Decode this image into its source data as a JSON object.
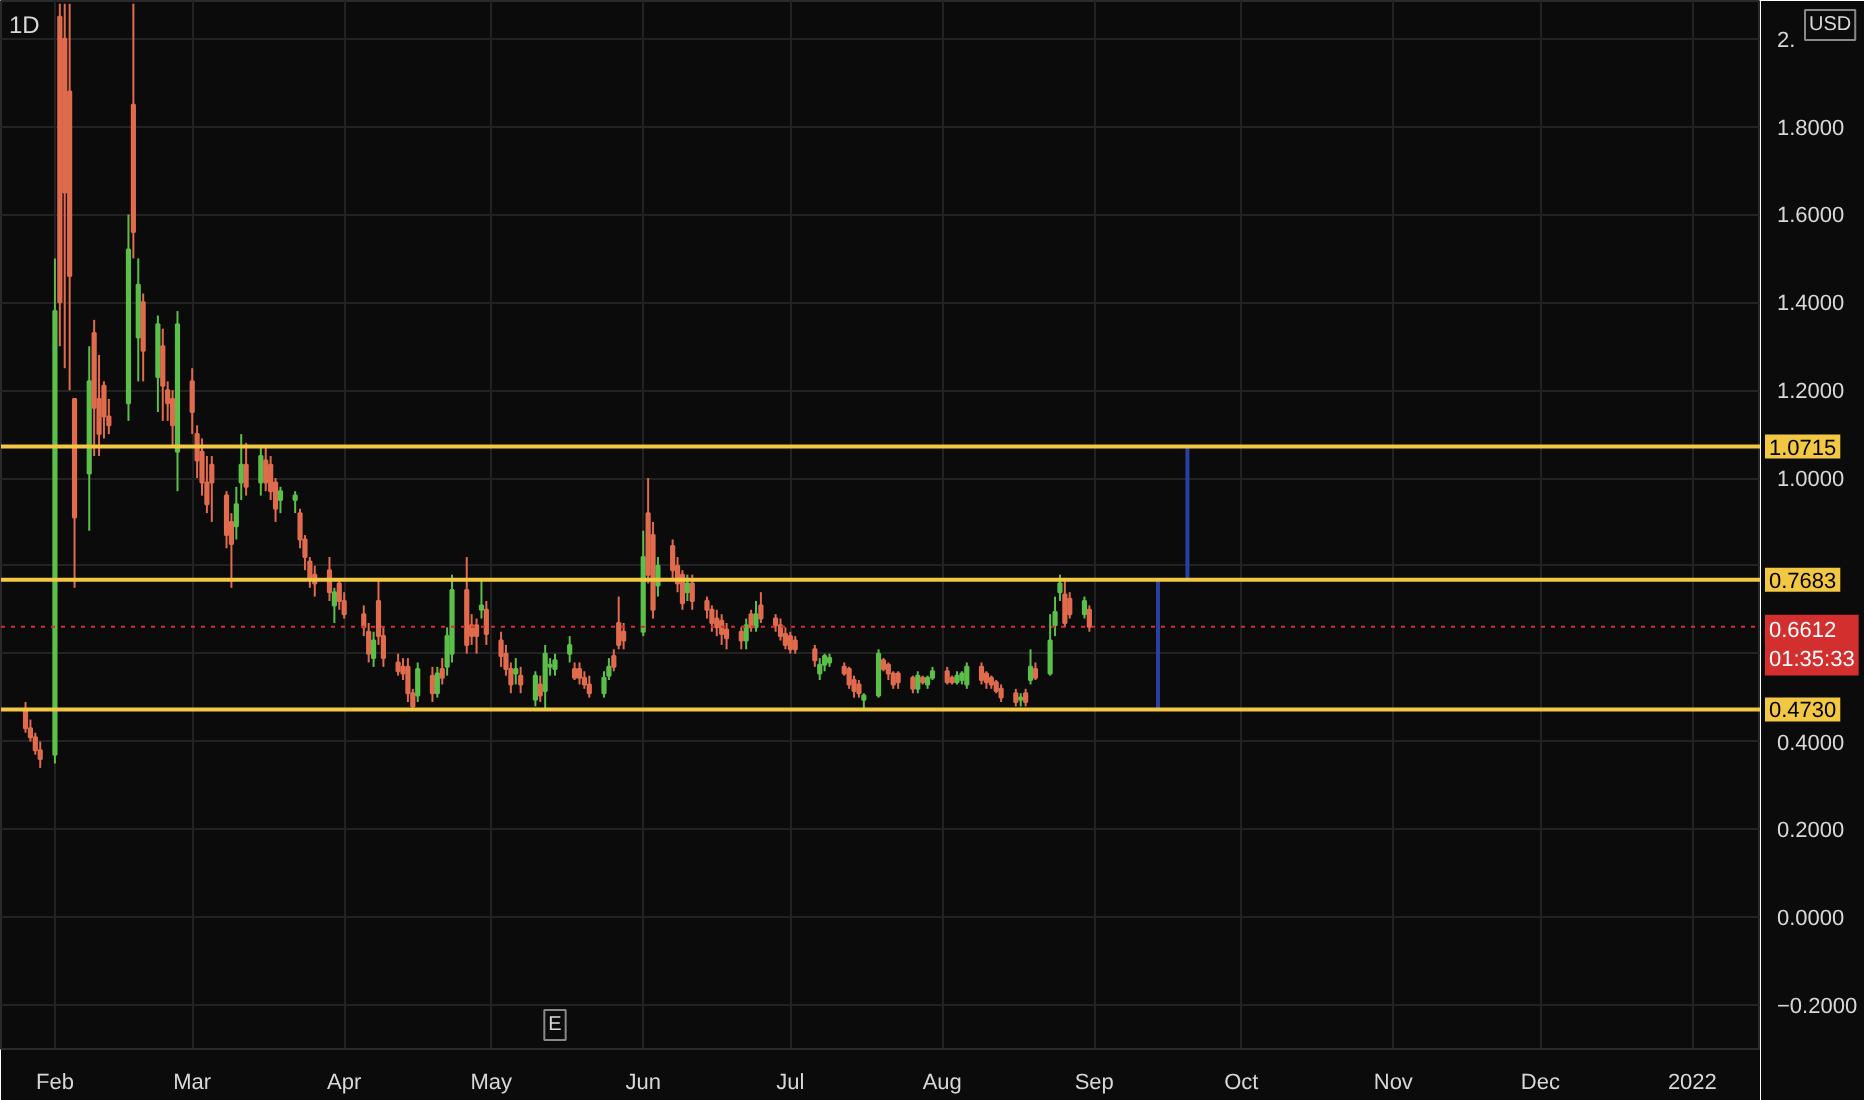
{
  "chart_data": {
    "type": "candlestick",
    "title": "1D",
    "x": [
      "2021-01-26",
      "2021-01-27",
      "2021-01-28",
      "2021-01-29",
      "2021-02-01",
      "2021-02-02",
      "2021-02-03",
      "2021-02-04",
      "2021-02-05",
      "2021-02-08",
      "2021-02-09",
      "2021-02-10",
      "2021-02-11",
      "2021-02-12",
      "2021-02-16",
      "2021-02-17",
      "2021-02-18",
      "2021-02-19",
      "2021-02-22",
      "2021-02-23",
      "2021-02-24",
      "2021-02-25",
      "2021-02-26",
      "2021-03-01",
      "2021-03-02",
      "2021-03-03",
      "2021-03-04",
      "2021-03-05",
      "2021-03-08",
      "2021-03-09",
      "2021-03-10",
      "2021-03-11",
      "2021-03-12",
      "2021-03-15",
      "2021-03-16",
      "2021-03-17",
      "2021-03-18",
      "2021-03-19",
      "2021-03-22",
      "2021-03-23",
      "2021-03-24",
      "2021-03-25",
      "2021-03-26",
      "2021-03-29",
      "2021-03-30",
      "2021-03-31",
      "2021-04-01",
      "2021-04-05",
      "2021-04-06",
      "2021-04-07",
      "2021-04-08",
      "2021-04-09",
      "2021-04-12",
      "2021-04-13",
      "2021-04-14",
      "2021-04-15",
      "2021-04-16",
      "2021-04-19",
      "2021-04-20",
      "2021-04-21",
      "2021-04-22",
      "2021-04-23",
      "2021-04-26",
      "2021-04-27",
      "2021-04-28",
      "2021-04-29",
      "2021-04-30",
      "2021-05-03",
      "2021-05-04",
      "2021-05-05",
      "2021-05-06",
      "2021-05-07",
      "2021-05-10",
      "2021-05-11",
      "2021-05-12",
      "2021-05-13",
      "2021-05-14",
      "2021-05-17",
      "2021-05-18",
      "2021-05-19",
      "2021-05-20",
      "2021-05-21",
      "2021-05-24",
      "2021-05-25",
      "2021-05-26",
      "2021-05-27",
      "2021-05-28",
      "2021-06-01",
      "2021-06-02",
      "2021-06-03",
      "2021-06-04",
      "2021-06-07",
      "2021-06-08",
      "2021-06-09",
      "2021-06-10",
      "2021-06-11",
      "2021-06-14",
      "2021-06-15",
      "2021-06-16",
      "2021-06-17",
      "2021-06-18",
      "2021-06-21",
      "2021-06-22",
      "2021-06-23",
      "2021-06-24",
      "2021-06-25",
      "2021-06-28",
      "2021-06-29",
      "2021-06-30",
      "2021-07-01",
      "2021-07-02",
      "2021-07-06",
      "2021-07-07",
      "2021-07-08",
      "2021-07-09",
      "2021-07-12",
      "2021-07-13",
      "2021-07-14",
      "2021-07-15",
      "2021-07-16",
      "2021-07-19",
      "2021-07-20",
      "2021-07-21",
      "2021-07-22",
      "2021-07-23",
      "2021-07-26",
      "2021-07-27",
      "2021-07-28",
      "2021-07-29",
      "2021-07-30",
      "2021-08-02",
      "2021-08-03",
      "2021-08-04",
      "2021-08-05",
      "2021-08-06",
      "2021-08-09",
      "2021-08-10",
      "2021-08-11",
      "2021-08-12",
      "2021-08-13",
      "2021-08-16",
      "2021-08-17",
      "2021-08-18",
      "2021-08-19",
      "2021-08-20",
      "2021-08-23",
      "2021-08-24",
      "2021-08-25",
      "2021-08-26",
      "2021-08-27",
      "2021-08-30",
      "2021-08-31"
    ],
    "ohlc": [
      [
        0.47,
        0.49,
        0.42,
        0.43
      ],
      [
        0.43,
        0.45,
        0.4,
        0.41
      ],
      [
        0.41,
        0.42,
        0.37,
        0.38
      ],
      [
        0.38,
        0.4,
        0.34,
        0.36
      ],
      [
        0.37,
        1.5,
        0.35,
        1.38
      ],
      [
        2.05,
        2.08,
        1.3,
        1.4
      ],
      [
        2.0,
        2.08,
        1.25,
        1.65
      ],
      [
        1.88,
        2.08,
        1.2,
        1.46
      ],
      [
        1.18,
        1.18,
        0.75,
        0.91
      ],
      [
        1.01,
        1.3,
        0.88,
        1.22
      ],
      [
        1.33,
        1.36,
        1.05,
        1.16
      ],
      [
        1.18,
        1.28,
        1.05,
        1.1
      ],
      [
        1.21,
        1.22,
        1.09,
        1.14
      ],
      [
        1.14,
        1.18,
        1.1,
        1.12
      ],
      [
        1.17,
        1.6,
        1.13,
        1.52
      ],
      [
        1.85,
        2.08,
        1.5,
        1.56
      ],
      [
        1.32,
        1.5,
        1.22,
        1.44
      ],
      [
        1.4,
        1.42,
        1.22,
        1.29
      ],
      [
        1.23,
        1.37,
        1.15,
        1.35
      ],
      [
        1.3,
        1.34,
        1.13,
        1.21
      ],
      [
        1.2,
        1.22,
        1.13,
        1.17
      ],
      [
        1.18,
        1.2,
        1.07,
        1.12
      ],
      [
        1.06,
        1.38,
        0.97,
        1.35
      ],
      [
        1.22,
        1.25,
        1.1,
        1.15
      ],
      [
        1.1,
        1.12,
        1.0,
        1.04
      ],
      [
        1.06,
        1.09,
        0.96,
        0.99
      ],
      [
        0.99,
        1.05,
        0.92,
        0.94
      ],
      [
        1.03,
        1.05,
        0.9,
        0.99
      ],
      [
        0.96,
        0.97,
        0.84,
        0.87
      ],
      [
        0.9,
        0.92,
        0.75,
        0.85
      ],
      [
        0.89,
        0.98,
        0.86,
        0.94
      ],
      [
        0.99,
        1.1,
        0.95,
        1.03
      ],
      [
        1.03,
        1.08,
        0.96,
        0.98
      ],
      [
        0.99,
        1.07,
        0.96,
        1.05
      ],
      [
        1.04,
        1.07,
        0.97,
        0.99
      ],
      [
        1.03,
        1.05,
        0.95,
        0.97
      ],
      [
        0.99,
        1.0,
        0.9,
        0.93
      ],
      [
        0.95,
        0.98,
        0.92,
        0.97
      ],
      [
        0.95,
        0.97,
        0.92,
        0.96
      ],
      [
        0.92,
        0.93,
        0.84,
        0.86
      ],
      [
        0.86,
        0.87,
        0.79,
        0.82
      ],
      [
        0.81,
        0.82,
        0.75,
        0.77
      ],
      [
        0.78,
        0.8,
        0.73,
        0.76
      ],
      [
        0.79,
        0.82,
        0.72,
        0.74
      ],
      [
        0.71,
        0.75,
        0.67,
        0.74
      ],
      [
        0.76,
        0.77,
        0.7,
        0.72
      ],
      [
        0.72,
        0.74,
        0.68,
        0.69
      ],
      [
        0.69,
        0.71,
        0.64,
        0.66
      ],
      [
        0.65,
        0.67,
        0.58,
        0.6
      ],
      [
        0.59,
        0.65,
        0.57,
        0.63
      ],
      [
        0.72,
        0.77,
        0.62,
        0.64
      ],
      [
        0.64,
        0.66,
        0.57,
        0.59
      ],
      [
        0.58,
        0.6,
        0.55,
        0.56
      ],
      [
        0.57,
        0.59,
        0.54,
        0.555
      ],
      [
        0.57,
        0.59,
        0.49,
        0.51
      ],
      [
        0.51,
        0.52,
        0.47,
        0.48
      ],
      [
        0.505,
        0.58,
        0.49,
        0.565
      ],
      [
        0.55,
        0.57,
        0.49,
        0.51
      ],
      [
        0.51,
        0.57,
        0.5,
        0.555
      ],
      [
        0.565,
        0.59,
        0.53,
        0.545
      ],
      [
        0.57,
        0.66,
        0.55,
        0.64
      ],
      [
        0.6,
        0.78,
        0.58,
        0.745
      ],
      [
        0.745,
        0.82,
        0.6,
        0.62
      ],
      [
        0.665,
        0.69,
        0.62,
        0.64
      ],
      [
        0.665,
        0.68,
        0.6,
        0.64
      ],
      [
        0.7,
        0.77,
        0.68,
        0.71
      ],
      [
        0.7,
        0.72,
        0.62,
        0.645
      ],
      [
        0.63,
        0.65,
        0.57,
        0.595
      ],
      [
        0.6,
        0.62,
        0.55,
        0.565
      ],
      [
        0.565,
        0.58,
        0.51,
        0.53
      ],
      [
        0.555,
        0.59,
        0.53,
        0.565
      ],
      [
        0.55,
        0.57,
        0.51,
        0.53
      ],
      [
        0.495,
        0.56,
        0.48,
        0.55
      ],
      [
        0.53,
        0.55,
        0.49,
        0.505
      ],
      [
        0.515,
        0.62,
        0.47,
        0.6
      ],
      [
        0.57,
        0.59,
        0.55,
        0.575
      ],
      [
        0.565,
        0.6,
        0.55,
        0.585
      ],
      [
        0.6,
        0.64,
        0.58,
        0.62
      ],
      [
        0.565,
        0.58,
        0.54,
        0.545
      ],
      [
        0.565,
        0.58,
        0.53,
        0.545
      ],
      [
        0.545,
        0.56,
        0.52,
        0.53
      ],
      [
        0.53,
        0.55,
        0.5,
        0.51
      ],
      [
        0.51,
        0.56,
        0.5,
        0.545
      ],
      [
        0.55,
        0.59,
        0.54,
        0.57
      ],
      [
        0.595,
        0.61,
        0.56,
        0.57
      ],
      [
        0.67,
        0.73,
        0.61,
        0.62
      ],
      [
        0.65,
        0.67,
        0.61,
        0.63
      ],
      [
        0.65,
        0.88,
        0.64,
        0.82
      ],
      [
        0.92,
        1.0,
        0.76,
        0.78
      ],
      [
        0.87,
        0.9,
        0.68,
        0.7
      ],
      [
        0.755,
        0.82,
        0.73,
        0.8
      ],
      [
        0.845,
        0.86,
        0.77,
        0.79
      ],
      [
        0.8,
        0.82,
        0.74,
        0.76
      ],
      [
        0.78,
        0.79,
        0.7,
        0.715
      ],
      [
        0.74,
        0.78,
        0.72,
        0.76
      ],
      [
        0.76,
        0.78,
        0.7,
        0.72
      ],
      [
        0.72,
        0.73,
        0.68,
        0.7
      ],
      [
        0.7,
        0.71,
        0.65,
        0.67
      ],
      [
        0.68,
        0.7,
        0.64,
        0.66
      ],
      [
        0.675,
        0.69,
        0.62,
        0.645
      ],
      [
        0.655,
        0.67,
        0.61,
        0.635
      ],
      [
        0.65,
        0.66,
        0.61,
        0.63
      ],
      [
        0.63,
        0.68,
        0.61,
        0.665
      ],
      [
        0.69,
        0.7,
        0.65,
        0.66
      ],
      [
        0.66,
        0.72,
        0.65,
        0.69
      ],
      [
        0.71,
        0.74,
        0.67,
        0.68
      ],
      [
        0.68,
        0.69,
        0.65,
        0.665
      ],
      [
        0.665,
        0.68,
        0.63,
        0.64
      ],
      [
        0.645,
        0.66,
        0.61,
        0.62
      ],
      [
        0.64,
        0.65,
        0.6,
        0.61
      ],
      [
        0.63,
        0.64,
        0.6,
        0.61
      ],
      [
        0.61,
        0.62,
        0.57,
        0.585
      ],
      [
        0.555,
        0.59,
        0.54,
        0.575
      ],
      [
        0.575,
        0.6,
        0.56,
        0.595
      ],
      [
        0.58,
        0.6,
        0.57,
        0.59
      ],
      [
        0.57,
        0.58,
        0.55,
        0.555
      ],
      [
        0.565,
        0.57,
        0.52,
        0.53
      ],
      [
        0.54,
        0.55,
        0.5,
        0.515
      ],
      [
        0.53,
        0.54,
        0.5,
        0.51
      ],
      [
        0.495,
        0.51,
        0.475,
        0.505
      ],
      [
        0.505,
        0.61,
        0.5,
        0.6
      ],
      [
        0.585,
        0.59,
        0.56,
        0.565
      ],
      [
        0.575,
        0.58,
        0.54,
        0.555
      ],
      [
        0.555,
        0.56,
        0.52,
        0.53
      ],
      [
        0.555,
        0.56,
        0.52,
        0.535
      ],
      [
        0.545,
        0.55,
        0.51,
        0.52
      ],
      [
        0.52,
        0.56,
        0.51,
        0.55
      ],
      [
        0.545,
        0.55,
        0.53,
        0.535
      ],
      [
        0.53,
        0.55,
        0.52,
        0.545
      ],
      [
        0.545,
        0.57,
        0.54,
        0.56
      ],
      [
        0.56,
        0.57,
        0.53,
        0.535
      ],
      [
        0.545,
        0.55,
        0.53,
        0.535
      ],
      [
        0.535,
        0.56,
        0.53,
        0.55
      ],
      [
        0.54,
        0.56,
        0.53,
        0.555
      ],
      [
        0.53,
        0.58,
        0.52,
        0.57
      ],
      [
        0.57,
        0.58,
        0.53,
        0.54
      ],
      [
        0.555,
        0.56,
        0.52,
        0.535
      ],
      [
        0.545,
        0.55,
        0.52,
        0.53
      ],
      [
        0.535,
        0.54,
        0.51,
        0.515
      ],
      [
        0.52,
        0.53,
        0.49,
        0.5
      ],
      [
        0.51,
        0.52,
        0.48,
        0.49
      ],
      [
        0.495,
        0.51,
        0.48,
        0.5
      ],
      [
        0.51,
        0.52,
        0.48,
        0.49
      ],
      [
        0.54,
        0.61,
        0.53,
        0.57
      ],
      [
        0.565,
        0.58,
        0.54,
        0.545
      ],
      [
        0.555,
        0.69,
        0.55,
        0.63
      ],
      [
        0.665,
        0.73,
        0.64,
        0.695
      ],
      [
        0.74,
        0.78,
        0.72,
        0.76
      ],
      [
        0.735,
        0.77,
        0.66,
        0.67
      ],
      [
        0.725,
        0.74,
        0.68,
        0.69
      ],
      [
        0.69,
        0.73,
        0.68,
        0.72
      ],
      [
        0.7,
        0.71,
        0.65,
        0.6612
      ]
    ],
    "colors": [
      "#e06b4d",
      "#e06b4d",
      "#e06b4d",
      "#e06b4d",
      "#5cbf4a",
      "#e06b4d",
      "#e06b4d",
      "#e06b4d",
      "#e06b4d",
      "#5cbf4a",
      "#e06b4d",
      "#e06b4d",
      "#e06b4d",
      "#e06b4d",
      "#5cbf4a",
      "#e06b4d",
      "#5cbf4a",
      "#e06b4d",
      "#5cbf4a",
      "#e06b4d",
      "#e06b4d",
      "#e06b4d",
      "#5cbf4a",
      "#e06b4d",
      "#e06b4d",
      "#e06b4d",
      "#e06b4d",
      "#e06b4d",
      "#e06b4d",
      "#e06b4d",
      "#5cbf4a",
      "#5cbf4a",
      "#e06b4d",
      "#5cbf4a",
      "#e06b4d",
      "#e06b4d",
      "#e06b4d",
      "#5cbf4a",
      "#5cbf4a",
      "#e06b4d",
      "#e06b4d",
      "#e06b4d",
      "#e06b4d",
      "#e06b4d",
      "#5cbf4a",
      "#e06b4d",
      "#e06b4d",
      "#e06b4d",
      "#e06b4d",
      "#5cbf4a",
      "#e06b4d",
      "#e06b4d",
      "#e06b4d",
      "#e06b4d",
      "#e06b4d",
      "#e06b4d",
      "#5cbf4a",
      "#e06b4d",
      "#5cbf4a",
      "#e06b4d",
      "#5cbf4a",
      "#5cbf4a",
      "#e06b4d",
      "#e06b4d",
      "#e06b4d",
      "#5cbf4a",
      "#e06b4d",
      "#e06b4d",
      "#e06b4d",
      "#e06b4d",
      "#5cbf4a",
      "#e06b4d",
      "#5cbf4a",
      "#e06b4d",
      "#5cbf4a",
      "#5cbf4a",
      "#5cbf4a",
      "#5cbf4a",
      "#e06b4d",
      "#e06b4d",
      "#e06b4d",
      "#e06b4d",
      "#5cbf4a",
      "#5cbf4a",
      "#e06b4d",
      "#e06b4d",
      "#e06b4d",
      "#5cbf4a",
      "#e06b4d",
      "#e06b4d",
      "#5cbf4a",
      "#e06b4d",
      "#e06b4d",
      "#e06b4d",
      "#5cbf4a",
      "#e06b4d",
      "#e06b4d",
      "#e06b4d",
      "#e06b4d",
      "#e06b4d",
      "#e06b4d",
      "#e06b4d",
      "#5cbf4a",
      "#e06b4d",
      "#5cbf4a",
      "#e06b4d",
      "#e06b4d",
      "#e06b4d",
      "#e06b4d",
      "#e06b4d",
      "#e06b4d",
      "#e06b4d",
      "#5cbf4a",
      "#5cbf4a",
      "#5cbf4a",
      "#e06b4d",
      "#e06b4d",
      "#e06b4d",
      "#e06b4d",
      "#5cbf4a",
      "#5cbf4a",
      "#e06b4d",
      "#e06b4d",
      "#e06b4d",
      "#e06b4d",
      "#e06b4d",
      "#5cbf4a",
      "#e06b4d",
      "#5cbf4a",
      "#5cbf4a",
      "#e06b4d",
      "#e06b4d",
      "#5cbf4a",
      "#5cbf4a",
      "#5cbf4a",
      "#e06b4d",
      "#e06b4d",
      "#e06b4d",
      "#e06b4d",
      "#e06b4d",
      "#e06b4d",
      "#5cbf4a",
      "#e06b4d",
      "#5cbf4a",
      "#e06b4d",
      "#5cbf4a",
      "#5cbf4a",
      "#5cbf4a",
      "#e06b4d",
      "#e06b4d",
      "#5cbf4a",
      "#e06b4d"
    ],
    "series": [
      {
        "type": "line",
        "color": "#2a3f9e",
        "x": [
          "2021-09-14",
          "2021-09-14"
        ],
        "values": [
          0.473,
          0.7683
        ]
      },
      {
        "type": "line",
        "color": "#2a3f9e",
        "x": [
          "2021-09-20",
          "2021-09-20"
        ],
        "values": [
          0.7683,
          1.0715
        ]
      }
    ],
    "xlim": [
      "2021-01-21",
      "2022-01-15"
    ],
    "xticks": [
      {
        "value": "2021-02-01",
        "label": "Feb"
      },
      {
        "value": "2021-03-01",
        "label": "Mar"
      },
      {
        "value": "2021-04-01",
        "label": "Apr"
      },
      {
        "value": "2021-05-01",
        "label": "May"
      },
      {
        "value": "2021-06-01",
        "label": "Jun"
      },
      {
        "value": "2021-07-01",
        "label": "Jul"
      },
      {
        "value": "2021-08-01",
        "label": "Aug"
      },
      {
        "value": "2021-09-01",
        "label": "Sep"
      },
      {
        "value": "2021-10-01",
        "label": "Oct"
      },
      {
        "value": "2021-11-01",
        "label": "Nov"
      },
      {
        "value": "2021-12-01",
        "label": "Dec"
      },
      {
        "value": "2022-01-01",
        "label": "2022"
      }
    ],
    "ylim": [
      -0.3,
      2.086
    ],
    "yticks": [
      {
        "value": -0.2,
        "label": "−0.2000"
      },
      {
        "value": 0,
        "label": "0.0000"
      },
      {
        "value": 0.2,
        "label": "0.2000"
      },
      {
        "value": 0.4,
        "label": "0.4000"
      },
      {
        "value": 0.6,
        "label": null
      },
      {
        "value": 0.8,
        "label": null
      },
      {
        "value": 1.0,
        "label": "1.0000"
      },
      {
        "value": 1.2,
        "label": "1.2000"
      },
      {
        "value": 1.4,
        "label": "1.4000"
      },
      {
        "value": 1.6,
        "label": "1.6000"
      },
      {
        "value": 1.8,
        "label": "1.8000"
      },
      {
        "value": 2.0,
        "label": "2."
      }
    ],
    "ref_lines": [
      {
        "axis": "y",
        "value": 1.0715,
        "label": "1.0715",
        "color": "#f2c744",
        "line_style": "solid"
      },
      {
        "axis": "y",
        "value": 0.7683,
        "label": "0.7683",
        "color": "#f2c744",
        "line_style": "solid"
      },
      {
        "axis": "y",
        "value": 0.473,
        "label": "0.4730",
        "color": "#f2c744",
        "line_style": "solid"
      },
      {
        "axis": "y",
        "value": 0.6612,
        "label": "0.6612\n01:35:33",
        "color": "#d32f2f",
        "line_style": "dotted"
      }
    ],
    "annotations": [
      "USD",
      {
        "text": "E",
        "x": "2021-05-14"
      }
    ],
    "grid": true
  }
}
